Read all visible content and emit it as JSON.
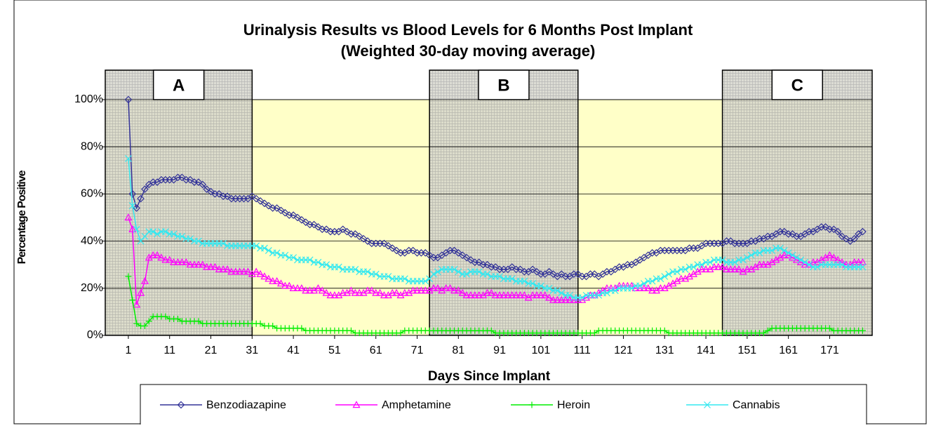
{
  "chart_data": {
    "type": "line",
    "title": "Urinalysis Results vs Blood Levels for 6 Months Post Implant",
    "subtitle": "(Weighted 30-day moving average)",
    "x_label": "Days Since Implant",
    "y_label": "Percentage Positive",
    "x": [
      1,
      2,
      3,
      4,
      5,
      6,
      7,
      8,
      9,
      10,
      11,
      12,
      13,
      14,
      15,
      16,
      17,
      18,
      19,
      20,
      21,
      22,
      23,
      24,
      25,
      26,
      27,
      28,
      29,
      30,
      31,
      32,
      33,
      34,
      35,
      36,
      37,
      38,
      39,
      40,
      41,
      42,
      43,
      44,
      45,
      46,
      47,
      48,
      49,
      50,
      51,
      52,
      53,
      54,
      55,
      56,
      57,
      58,
      59,
      60,
      61,
      62,
      63,
      64,
      65,
      66,
      67,
      68,
      69,
      70,
      71,
      72,
      73,
      74,
      75,
      76,
      77,
      78,
      79,
      80,
      81,
      82,
      83,
      84,
      85,
      86,
      87,
      88,
      89,
      90,
      91,
      92,
      93,
      94,
      95,
      96,
      97,
      98,
      99,
      100,
      101,
      102,
      103,
      104,
      105,
      106,
      107,
      108,
      109,
      110,
      111,
      112,
      113,
      114,
      115,
      116,
      117,
      118,
      119,
      120,
      121,
      122,
      123,
      124,
      125,
      126,
      127,
      128,
      129,
      130,
      131,
      132,
      133,
      134,
      135,
      136,
      137,
      138,
      139,
      140,
      141,
      142,
      143,
      144,
      145,
      146,
      147,
      148,
      149,
      150,
      151,
      152,
      153,
      154,
      155,
      156,
      157,
      158,
      159,
      160,
      161,
      162,
      163,
      164,
      165,
      166,
      167,
      168,
      169,
      170,
      171,
      172,
      173,
      174,
      175,
      176,
      177,
      178,
      179
    ],
    "series": [
      {
        "name": "Benzodiazapine",
        "color": "#333399",
        "marker": "diamond",
        "values": [
          100,
          60,
          54,
          58,
          62,
          64,
          65,
          65,
          66,
          66,
          66,
          66,
          67,
          67,
          66,
          66,
          65,
          65,
          64,
          62,
          61,
          60,
          60,
          59,
          59,
          58,
          58,
          58,
          58,
          58,
          59,
          58,
          57,
          56,
          55,
          54,
          54,
          53,
          52,
          51,
          51,
          50,
          49,
          48,
          47,
          47,
          46,
          45,
          45,
          44,
          44,
          44,
          45,
          44,
          43,
          43,
          42,
          41,
          40,
          39,
          39,
          39,
          39,
          38,
          37,
          36,
          35,
          35,
          36,
          36,
          35,
          35,
          35,
          34,
          33,
          33,
          34,
          35,
          36,
          36,
          35,
          34,
          33,
          32,
          31,
          31,
          30,
          30,
          29,
          29,
          28,
          28,
          28,
          29,
          28,
          28,
          27,
          27,
          28,
          27,
          26,
          26,
          27,
          26,
          25,
          26,
          25,
          25,
          26,
          26,
          25,
          25,
          26,
          26,
          25,
          26,
          27,
          27,
          28,
          29,
          29,
          30,
          30,
          31,
          32,
          33,
          34,
          35,
          35,
          36,
          36,
          36,
          36,
          36,
          36,
          36,
          37,
          37,
          37,
          38,
          39,
          39,
          39,
          39,
          39,
          40,
          40,
          39,
          39,
          39,
          39,
          40,
          40,
          41,
          41,
          42,
          42,
          43,
          44,
          44,
          43,
          43,
          42,
          42,
          43,
          44,
          44,
          45,
          46,
          46,
          45,
          45,
          44,
          42,
          41,
          40,
          41,
          43,
          44
        ]
      },
      {
        "name": "Amphetamine",
        "color": "#ff00ff",
        "marker": "triangle",
        "values": [
          50,
          45,
          13,
          18,
          23,
          33,
          34,
          34,
          33,
          32,
          32,
          31,
          31,
          31,
          31,
          30,
          30,
          30,
          30,
          29,
          29,
          29,
          28,
          28,
          28,
          27,
          27,
          27,
          27,
          27,
          26,
          27,
          26,
          25,
          24,
          23,
          23,
          22,
          21,
          21,
          20,
          20,
          20,
          19,
          19,
          19,
          20,
          19,
          18,
          17,
          17,
          17,
          18,
          18,
          19,
          18,
          18,
          18,
          19,
          19,
          18,
          18,
          17,
          17,
          18,
          18,
          17,
          18,
          18,
          19,
          19,
          19,
          19,
          19,
          20,
          20,
          19,
          20,
          20,
          19,
          19,
          18,
          17,
          17,
          17,
          17,
          17,
          18,
          18,
          17,
          17,
          17,
          17,
          17,
          17,
          17,
          17,
          16,
          17,
          17,
          17,
          17,
          16,
          15,
          15,
          15,
          15,
          15,
          15,
          15,
          15,
          16,
          17,
          17,
          18,
          19,
          20,
          20,
          20,
          21,
          21,
          21,
          21,
          20,
          20,
          20,
          20,
          19,
          19,
          20,
          20,
          21,
          22,
          23,
          24,
          24,
          25,
          26,
          27,
          28,
          28,
          28,
          29,
          29,
          29,
          28,
          28,
          28,
          28,
          27,
          28,
          28,
          29,
          30,
          30,
          30,
          31,
          32,
          33,
          34,
          34,
          33,
          32,
          31,
          30,
          30,
          31,
          31,
          32,
          33,
          34,
          33,
          32,
          31,
          30,
          30,
          31,
          31,
          31
        ]
      },
      {
        "name": "Heroin",
        "color": "#00ee00",
        "marker": "plus",
        "values": [
          25,
          15,
          5,
          4,
          4,
          6,
          8,
          8,
          8,
          8,
          7,
          7,
          7,
          6,
          6,
          6,
          6,
          6,
          5,
          5,
          5,
          5,
          5,
          5,
          5,
          5,
          5,
          5,
          5,
          5,
          5,
          5,
          5,
          4,
          4,
          4,
          3,
          3,
          3,
          3,
          3,
          3,
          3,
          2,
          2,
          2,
          2,
          2,
          2,
          2,
          2,
          2,
          2,
          2,
          2,
          1,
          1,
          1,
          1,
          1,
          1,
          1,
          1,
          1,
          1,
          1,
          1,
          2,
          2,
          2,
          2,
          2,
          2,
          2,
          2,
          2,
          2,
          2,
          2,
          2,
          2,
          2,
          2,
          2,
          2,
          2,
          2,
          2,
          2,
          1,
          1,
          1,
          1,
          1,
          1,
          1,
          1,
          1,
          1,
          1,
          1,
          1,
          1,
          1,
          1,
          1,
          1,
          1,
          1,
          1,
          1,
          1,
          1,
          1,
          2,
          2,
          2,
          2,
          2,
          2,
          2,
          2,
          2,
          2,
          2,
          2,
          2,
          2,
          2,
          2,
          2,
          1,
          1,
          1,
          1,
          1,
          1,
          1,
          1,
          1,
          1,
          1,
          1,
          1,
          1,
          1,
          1,
          1,
          1,
          1,
          1,
          1,
          1,
          1,
          1,
          2,
          3,
          3,
          3,
          3,
          3,
          3,
          3,
          3,
          3,
          3,
          3,
          3,
          3,
          3,
          3,
          2,
          2,
          2,
          2,
          2,
          2,
          2,
          2
        ]
      },
      {
        "name": "Cannabis",
        "color": "#33e8f0",
        "marker": "x",
        "values": [
          75,
          55,
          45,
          40,
          42,
          44,
          44,
          43,
          44,
          44,
          43,
          43,
          42,
          42,
          41,
          41,
          40,
          40,
          39,
          39,
          39,
          39,
          39,
          39,
          38,
          38,
          38,
          38,
          38,
          38,
          38,
          38,
          37,
          37,
          36,
          35,
          35,
          34,
          34,
          33,
          33,
          32,
          32,
          32,
          32,
          31,
          31,
          30,
          30,
          29,
          29,
          29,
          28,
          28,
          28,
          28,
          27,
          27,
          27,
          26,
          26,
          25,
          25,
          25,
          24,
          24,
          24,
          24,
          23,
          23,
          23,
          23,
          23,
          24,
          26,
          27,
          28,
          28,
          28,
          28,
          27,
          26,
          26,
          27,
          27,
          27,
          26,
          26,
          25,
          25,
          25,
          24,
          24,
          24,
          23,
          23,
          23,
          22,
          22,
          21,
          21,
          20,
          20,
          19,
          19,
          18,
          17,
          17,
          16,
          16,
          16,
          17,
          17,
          17,
          17,
          18,
          18,
          19,
          19,
          20,
          20,
          20,
          20,
          21,
          21,
          22,
          23,
          23,
          24,
          24,
          25,
          26,
          27,
          27,
          28,
          28,
          29,
          29,
          30,
          30,
          31,
          31,
          32,
          32,
          32,
          31,
          31,
          31,
          32,
          32,
          33,
          34,
          35,
          35,
          36,
          36,
          36,
          37,
          37,
          36,
          35,
          34,
          33,
          32,
          31,
          30,
          29,
          29,
          30,
          30,
          30,
          30,
          30,
          30,
          29,
          29,
          29,
          29,
          29
        ]
      }
    ],
    "xlim": [
      -4.6,
      181.3
    ],
    "xticks": [
      1,
      11,
      21,
      31,
      41,
      51,
      61,
      71,
      81,
      91,
      101,
      111,
      121,
      131,
      141,
      151,
      161,
      171
    ],
    "ylim": [
      0,
      100
    ],
    "yticks": [
      {
        "value": 0,
        "label": "0%"
      },
      {
        "value": 20,
        "label": "20%"
      },
      {
        "value": 40,
        "label": "40%"
      },
      {
        "value": 60,
        "label": "60%"
      },
      {
        "value": 80,
        "label": "80%"
      },
      {
        "value": 100,
        "label": "100%"
      }
    ],
    "grid": true,
    "regions": [
      {
        "label": "A",
        "start": -4.6,
        "end": 31
      },
      {
        "label": "B",
        "start": 74,
        "end": 110
      },
      {
        "label": "C",
        "start": 145,
        "end": 181.3
      }
    ],
    "legend": "bottom"
  }
}
